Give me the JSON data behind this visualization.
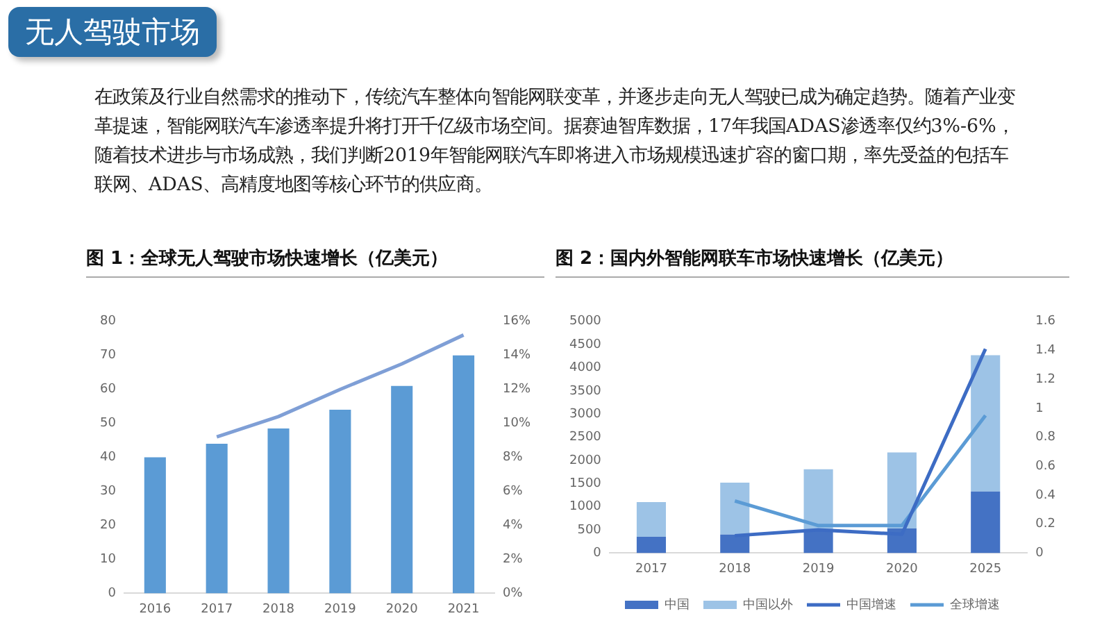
{
  "chart_data": [
    {
      "type": "other",
      "title": "无人驾驶市场",
      "annotations": [
        "在政策及行业自然需求的推动下，传统汽车整体向智能网联变革，并逐步走向无人驾驶已成为确定趋势。随着产业变革提速，智能网联汽车渗透率提升将打开千亿级市场空间。据赛迪智库数据，17年我国ADAS渗透率仅约3%-6%，随着技术进步与市场成熟，我们判断2019年智能网联汽车即将进入市场规模迅速扩容的窗口期，率先受益的包括车联网、ADAS、高精度地图等核心环节的供应商。"
      ]
    },
    {
      "type": "bar",
      "title": "图 1：全球无人驾驶市场快速增长（亿美元）",
      "categories": [
        "2016",
        "2017",
        "2018",
        "2019",
        "2020",
        "2021"
      ],
      "series": [
        {
          "type": "bar",
          "color": "#5b9bd5",
          "values": [
            40,
            44,
            48.5,
            54,
            61,
            70
          ]
        },
        {
          "type": "line",
          "axis": "y2",
          "color": "#7f9fd6",
          "values": [
            null,
            9.2,
            10.4,
            12,
            13.5,
            15.2
          ]
        }
      ],
      "ylim": [
        0,
        80
      ],
      "yticks": [
        0,
        10,
        20,
        30,
        40,
        50,
        60,
        70,
        80
      ],
      "y2lim": [
        0,
        16
      ],
      "y2ticks": [
        {
          "value": 0,
          "label": "0%"
        },
        {
          "value": 2,
          "label": "2%"
        },
        {
          "value": 4,
          "label": "4%"
        },
        {
          "value": 6,
          "label": "6%"
        },
        {
          "value": 8,
          "label": "8%"
        },
        {
          "value": 10,
          "label": "10%"
        },
        {
          "value": 12,
          "label": "12%"
        },
        {
          "value": 14,
          "label": "14%"
        },
        {
          "value": 16,
          "label": "16%"
        }
      ],
      "marker": "none"
    },
    {
      "type": "bar",
      "title": "图 2：国内外智能网联车市场快速增长（亿美元）",
      "categories": [
        "2017",
        "2018",
        "2019",
        "2020",
        "2025"
      ],
      "stacked": true,
      "series": [
        {
          "name": "中国",
          "type": "bar",
          "color": "#4472c4",
          "values": [
            350,
            400,
            520,
            530,
            1330
          ]
        },
        {
          "name": "中国以外",
          "type": "bar",
          "color": "#9dc3e6",
          "values": [
            750,
            1120,
            1290,
            1640,
            2940
          ]
        },
        {
          "name": "中国增速",
          "type": "line",
          "axis": "y2",
          "color": "#3d6cc4",
          "values": [
            null,
            0.12,
            0.16,
            0.13,
            1.41
          ]
        },
        {
          "name": "全球增速",
          "type": "line",
          "axis": "y2",
          "color": "#5b9bd5",
          "values": [
            null,
            0.36,
            0.19,
            0.19,
            0.95
          ]
        }
      ],
      "ylim": [
        0,
        5000
      ],
      "yticks": [
        0,
        500,
        1000,
        1500,
        2000,
        2500,
        3000,
        3500,
        4000,
        4500,
        5000
      ],
      "y2lim": [
        0,
        1.6
      ],
      "y2ticks": [
        0,
        0.2,
        0.4,
        0.6,
        0.8,
        1,
        1.2,
        1.4,
        1.6
      ],
      "legend": "bottom",
      "marker": "none"
    }
  ]
}
